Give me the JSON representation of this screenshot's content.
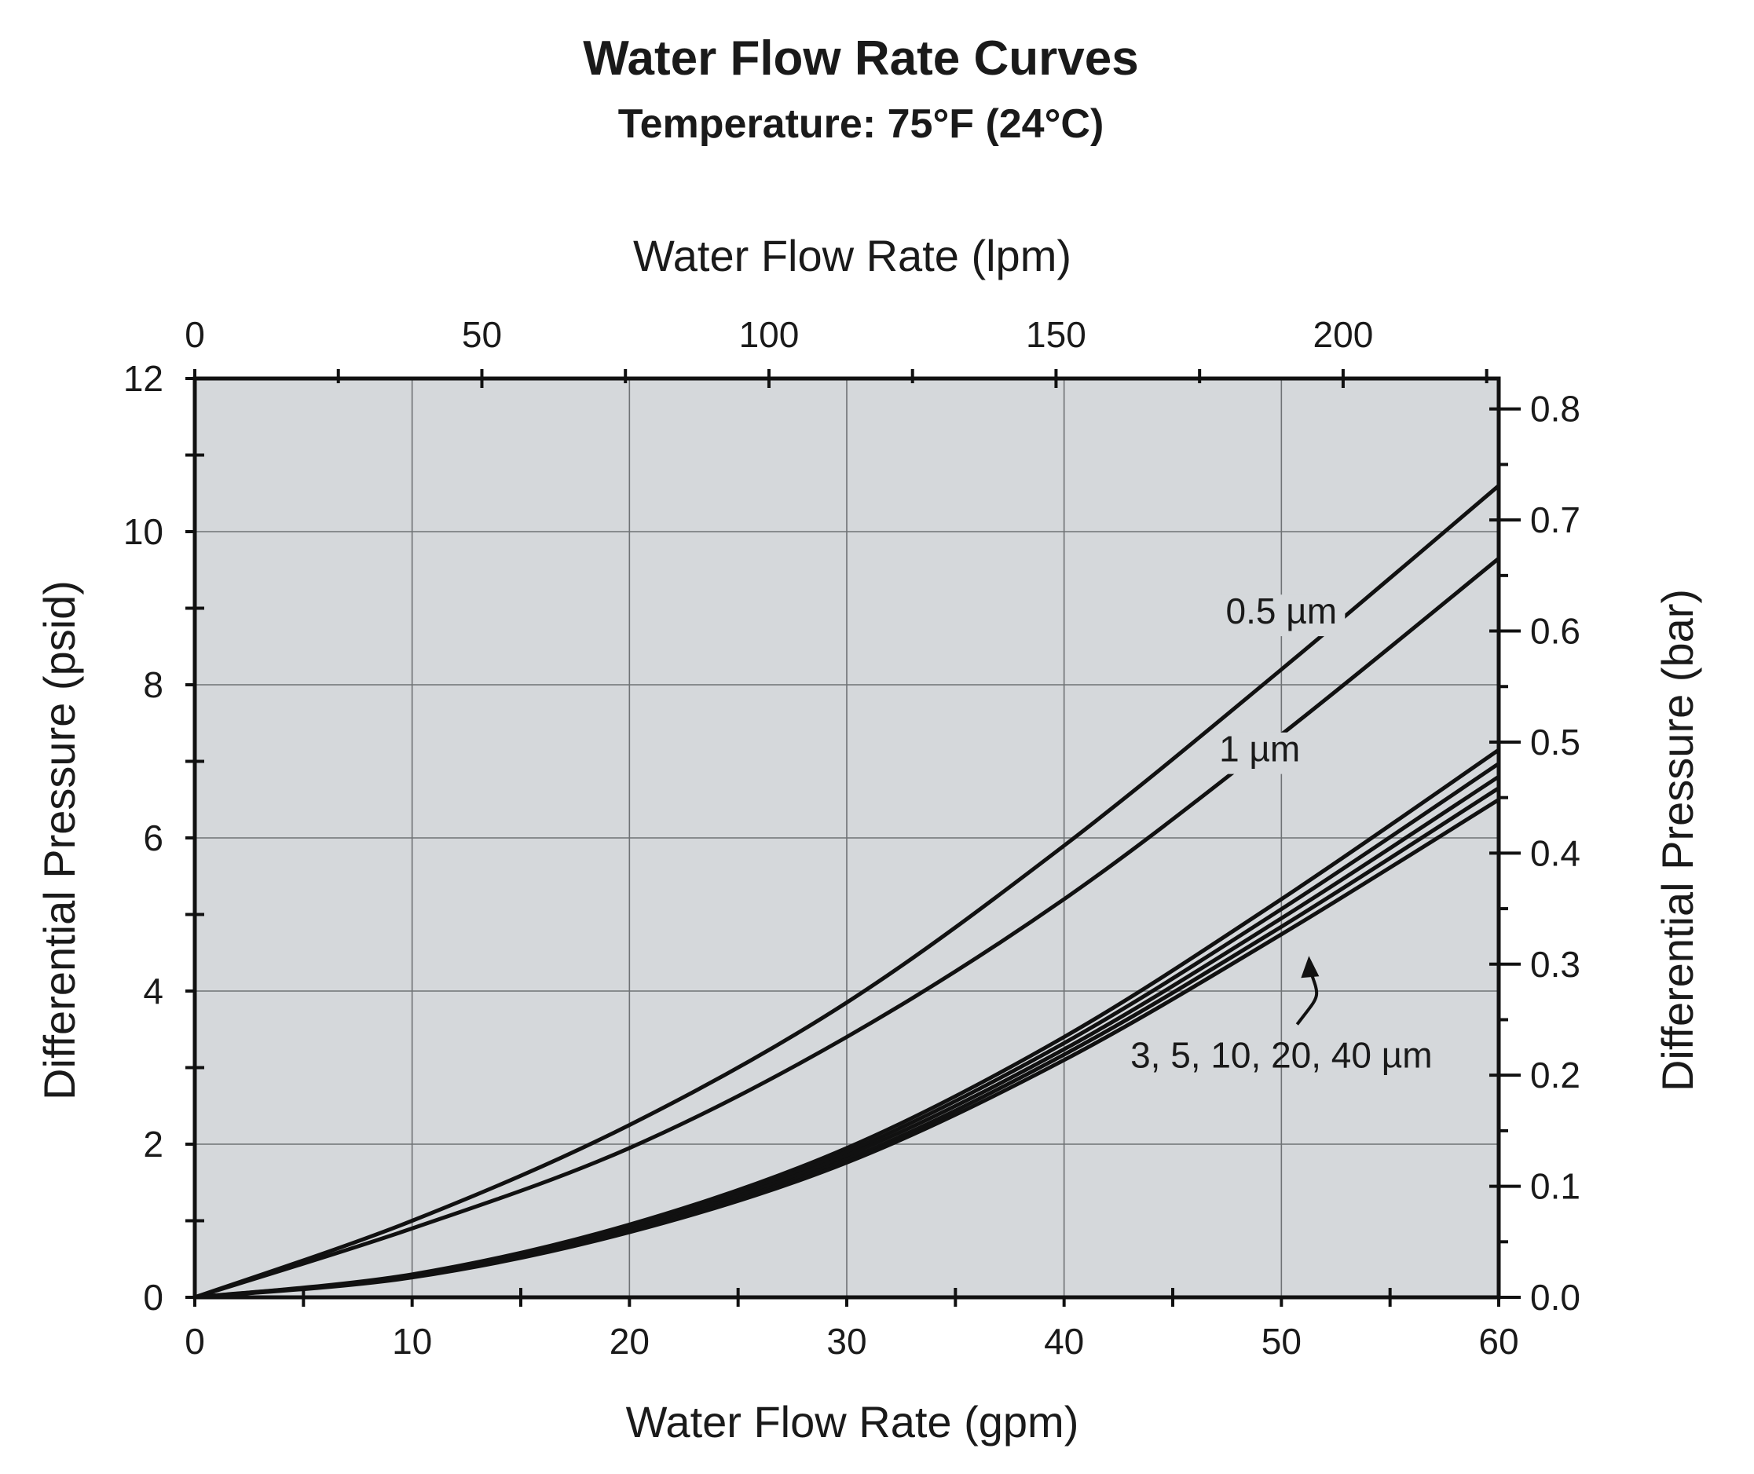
{
  "colors": {
    "plot_background": "#d5d8db",
    "line": "#111111",
    "grid": "#6f7275"
  },
  "chart_data": {
    "type": "line",
    "title": "Water Flow Rate Curves",
    "subtitle": "Temperature: 75°F (24°C)",
    "xlabel": "Water Flow Rate (gpm)",
    "x2label": "Water Flow Rate (lpm)",
    "ylabel": "Differential Pressure (psid)",
    "y2label": "Differential Pressure (bar)",
    "xlim": [
      0,
      60
    ],
    "ylim": [
      0,
      12
    ],
    "x2lim": [
      0,
      227.1
    ],
    "y2lim": [
      0,
      0.8274
    ],
    "grid": true,
    "x_ticks": [
      "0",
      "10",
      "20",
      "30",
      "40",
      "50",
      "60"
    ],
    "y_ticks": [
      "0",
      "2",
      "4",
      "6",
      "8",
      "10",
      "12"
    ],
    "x2_ticks": [
      "0",
      "50",
      "100",
      "150",
      "200"
    ],
    "y2_ticks": [
      "0.0",
      "0.1",
      "0.2",
      "0.3",
      "0.4",
      "0.5",
      "0.6",
      "0.7",
      "0.8"
    ],
    "x": [
      0,
      10,
      20,
      30,
      40,
      50,
      60
    ],
    "series": [
      {
        "values": [
          0,
          1.0,
          2.25,
          3.85,
          5.9,
          8.2,
          10.6
        ]
      },
      {
        "values": [
          0,
          0.9,
          1.95,
          3.4,
          5.2,
          7.35,
          9.65
        ]
      },
      {
        "values": [
          0,
          0.3,
          0.95,
          1.95,
          3.4,
          5.2,
          7.15
        ]
      },
      {
        "values": [
          0,
          0.29,
          0.92,
          1.9,
          3.32,
          5.07,
          6.97
        ]
      },
      {
        "values": [
          0,
          0.28,
          0.89,
          1.85,
          3.24,
          4.95,
          6.8
        ]
      },
      {
        "values": [
          0,
          0.27,
          0.87,
          1.8,
          3.17,
          4.84,
          6.65
        ]
      },
      {
        "values": [
          0,
          0.26,
          0.85,
          1.76,
          3.1,
          4.74,
          6.5
        ]
      }
    ],
    "annotations": [
      {
        "text": "0.5 µm",
        "x": 50,
        "y": 8.8
      },
      {
        "text": "1 µm",
        "x": 49,
        "y": 7.0
      },
      {
        "text": "3, 5, 10, 20, 40 µm",
        "x": 50,
        "y": 3.0
      }
    ]
  }
}
